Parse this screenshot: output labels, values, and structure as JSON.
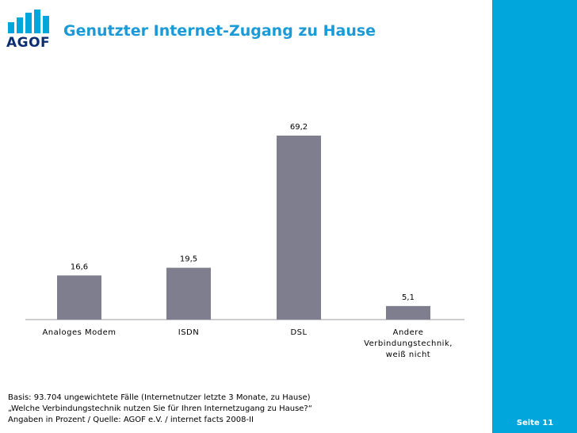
{
  "header": {
    "logo_text": "AGOF",
    "title": "Genutzter Internet-Zugang zu Hause"
  },
  "chart_data": {
    "type": "bar",
    "title": "Genutzter Internet-Zugang zu Hause",
    "categories": [
      [
        "Analoges Modem"
      ],
      [
        "ISDN"
      ],
      [
        "DSL"
      ],
      [
        "Andere",
        "Verbindungstechnik,",
        "weiß nicht"
      ]
    ],
    "values": [
      16.6,
      19.5,
      69.2,
      5.1
    ],
    "value_labels": [
      "16,6",
      "19,5",
      "69,2",
      "5,1"
    ],
    "xlabel": "",
    "ylabel": "",
    "ylim": [
      0,
      69.2
    ],
    "grid": false,
    "legend": "none",
    "bar_color": "#7e7e8e"
  },
  "footer": {
    "lines": [
      "Basis: 93.704 ungewichtete Fälle (Internetnutzer letzte 3 Monate, zu Hause)",
      "„Welche Verbindungstechnik nutzen Sie für Ihren Internetzugang zu Hause?“",
      "Angaben in Prozent / Quelle: AGOF e.V. / internet facts 2008-II"
    ],
    "page_label": "Seite 11"
  },
  "colors": {
    "accent": "#00a6dc",
    "title": "#1a9ad6",
    "logo": "#0d2f6f"
  }
}
